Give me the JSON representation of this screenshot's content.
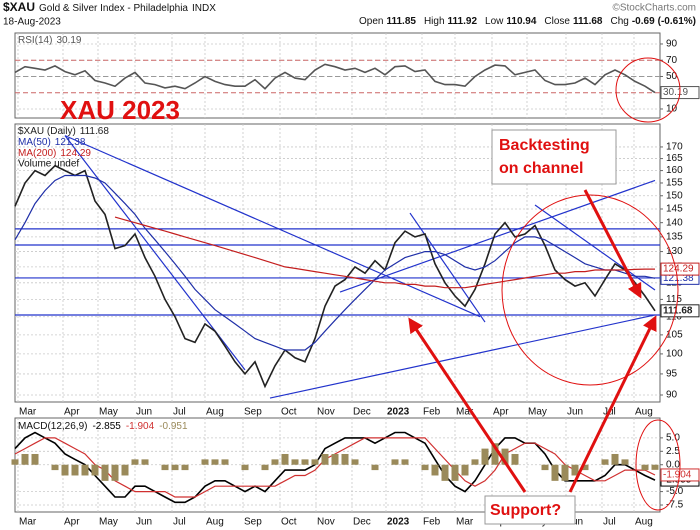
{
  "header": {
    "symbol": "$XAU",
    "name": "Gold & Silver Index - Philadelphia",
    "exchange": "INDX",
    "date": "18-Aug-2023",
    "ohlc": [
      {
        "label": "Open",
        "value": 111.85
      },
      {
        "label": "High",
        "value": 111.92
      },
      {
        "label": "Low",
        "value": 110.94
      },
      {
        "label": "Close",
        "value": 111.68
      }
    ],
    "change_label": "Chg",
    "change": -0.69,
    "change_pct_label": "(-0.61%)",
    "credit": "©StockCharts.com"
  },
  "annotations": {
    "title": "XAU 2023",
    "note": [
      "Backtesting",
      "on channel"
    ],
    "question": "Support?"
  },
  "chart_data": [
    {
      "type": "line",
      "series": [
        {
          "name": "RSI(14)",
          "color": "#555555",
          "values": [
            55,
            62,
            60,
            58,
            63,
            56,
            52,
            57,
            45,
            42,
            38,
            48,
            55,
            42,
            40,
            36,
            38,
            35,
            42,
            50,
            44,
            40,
            38,
            38,
            46,
            35,
            48,
            55,
            48,
            46,
            58,
            65,
            62,
            58,
            60,
            55,
            60,
            52,
            62,
            63,
            56,
            58,
            44,
            40,
            40,
            38,
            50,
            58,
            64,
            63,
            52,
            55,
            58,
            45,
            40,
            40,
            42,
            48,
            40,
            52,
            58,
            52,
            44,
            38,
            30.19
          ]
        }
      ],
      "xlim": [
        0,
        64.5
      ],
      "ylim": [
        -1.1,
        103.5
      ],
      "yticks": [
        10,
        50,
        70,
        90
      ],
      "reference_lines": [
        30,
        50,
        70
      ]
    },
    {
      "type": "line",
      "log_scale": true,
      "series": [
        {
          "name": "$XAU (Daily)",
          "color": "#222222",
          "values": [
            146,
            155,
            160,
            158,
            162,
            160,
            158,
            160,
            148,
            143,
            131,
            132,
            136,
            128,
            122,
            115,
            110,
            104,
            103,
            108,
            106,
            102,
            98,
            95,
            98,
            92,
            97,
            101,
            99,
            98,
            104,
            113,
            119,
            121,
            125,
            123,
            127,
            124,
            133,
            137,
            135,
            136,
            126,
            120,
            116,
            113,
            118,
            126,
            136,
            140,
            135,
            136,
            139,
            132,
            124,
            121,
            119,
            120,
            116,
            121,
            126,
            124,
            120,
            116,
            111.68
          ]
        },
        {
          "name": "MA(50)",
          "color": "#1f2fa8",
          "values": [
            134,
            140,
            147,
            152,
            156,
            158,
            158,
            158,
            157,
            155,
            151,
            147,
            143,
            138,
            134,
            130,
            126,
            122,
            118,
            115,
            112,
            110,
            108,
            106,
            104,
            103,
            102,
            101,
            101,
            101,
            103,
            106,
            109,
            112,
            115,
            118,
            121,
            124,
            126,
            128,
            129,
            130,
            130,
            129,
            127,
            125,
            124,
            125,
            127,
            130,
            133,
            135,
            135,
            134,
            132,
            130,
            128,
            126,
            125,
            124,
            124,
            123,
            122,
            122,
            121.38
          ]
        },
        {
          "name": "MA(200)",
          "color": "#c41e1e",
          "values": [
            null,
            null,
            null,
            null,
            null,
            null,
            null,
            null,
            null,
            null,
            142,
            141,
            140,
            139,
            138,
            137,
            136,
            135,
            134,
            133,
            132,
            131,
            130,
            129,
            128,
            127,
            126,
            125,
            124.5,
            124,
            123.5,
            123,
            122.5,
            122,
            121.5,
            121,
            120.5,
            120,
            120,
            119.5,
            119.5,
            119,
            119,
            118.5,
            118.5,
            118.5,
            119,
            119.5,
            120,
            120.5,
            121,
            121.5,
            122,
            122.5,
            123,
            123,
            123.5,
            123.5,
            124,
            124,
            124,
            124,
            124.2,
            124.3,
            124.29
          ]
        }
      ],
      "volume_label": "Volume undef",
      "xlim": [
        0,
        64.5
      ],
      "ylim": [
        88.4,
        180.3
      ],
      "yticks": [
        90,
        95,
        100,
        105,
        110,
        115,
        120,
        125,
        130,
        135,
        140,
        145,
        150,
        155,
        160,
        165,
        170
      ],
      "xticks": [
        {
          "value": 0.3,
          "label": "Mar"
        },
        {
          "value": 4.8,
          "label": "Apr"
        },
        {
          "value": 8.3,
          "label": "May"
        },
        {
          "value": 12,
          "label": "Jun"
        },
        {
          "value": 15.7,
          "label": "Jul"
        },
        {
          "value": 19,
          "label": "Aug"
        },
        {
          "value": 22.8,
          "label": "Sep"
        },
        {
          "value": 26.5,
          "label": "Oct"
        },
        {
          "value": 30.1,
          "label": "Nov"
        },
        {
          "value": 33.7,
          "label": "Dec"
        },
        {
          "value": 37.1,
          "label": "2023"
        },
        {
          "value": 40.7,
          "label": "Feb"
        },
        {
          "value": 44,
          "label": "Mar"
        },
        {
          "value": 47.7,
          "label": "Apr"
        },
        {
          "value": 51.2,
          "label": "May"
        },
        {
          "value": 55.1,
          "label": "Jun"
        },
        {
          "value": 58.7,
          "label": "Jul"
        },
        {
          "value": 61.9,
          "label": "Aug"
        }
      ],
      "hlines": [
        137.8,
        132.2,
        121.5,
        110.5
      ],
      "trendlines": [
        [
          5,
          175,
          23,
          96
        ],
        [
          5,
          175,
          46.5,
          110
        ],
        [
          25.5,
          89.3,
          64,
          110.5
        ],
        [
          32.5,
          117.2,
          64,
          156
        ],
        [
          39.5,
          143.5,
          47,
          108.5
        ],
        [
          52,
          146.5,
          64,
          117.8
        ]
      ]
    },
    {
      "type": "line",
      "series": [
        {
          "name": "MACD(12,26,9)",
          "color": "#000000",
          "values": [
            3,
            5,
            6,
            5,
            4,
            2,
            1,
            0,
            -2,
            -4,
            -6,
            -6,
            -4,
            -4,
            -5,
            -6,
            -7,
            -7,
            -6,
            -4,
            -3,
            -3,
            -4,
            -5,
            -4,
            -5,
            -3,
            -1,
            -1,
            -1,
            0,
            3,
            4,
            5,
            5,
            5,
            4,
            5,
            6,
            6,
            5,
            4,
            1,
            -2,
            -4,
            -5,
            -3,
            0,
            3,
            5,
            5,
            4,
            4,
            2,
            -1,
            -3,
            -3,
            -3,
            -3,
            -2,
            0,
            0,
            -1,
            -2,
            -2.855
          ]
        },
        {
          "color": "#d03030",
          "values": [
            2,
            3,
            4,
            5,
            5,
            4,
            3,
            2,
            0,
            -1,
            -3,
            -4,
            -5,
            -5,
            -5,
            -5,
            -6,
            -6,
            -6,
            -5,
            -4,
            -4,
            -4,
            -4,
            -4,
            -4,
            -4,
            -3,
            -2,
            -2,
            -1,
            1,
            2,
            3,
            4,
            5,
            5,
            5,
            5,
            5,
            5,
            5,
            3,
            1,
            -1,
            -3,
            -4,
            -3,
            -1,
            2,
            3,
            4,
            4,
            3,
            2,
            0,
            -1,
            -2,
            -3,
            -3,
            -2,
            -1,
            -1,
            -1,
            -1.904
          ]
        },
        {
          "type": "bar",
          "color": "#9a8a5a",
          "values": [
            1,
            2,
            2,
            0,
            -1,
            -2,
            -2,
            -2,
            -2,
            -3,
            -3,
            -2,
            1,
            1,
            0,
            -1,
            -1,
            -1,
            0,
            1,
            1,
            1,
            0,
            -1,
            0,
            -1,
            1,
            2,
            1,
            1,
            1,
            2,
            2,
            2,
            1,
            0,
            -1,
            0,
            1,
            1,
            0,
            -1,
            -2,
            -3,
            -3,
            -2,
            1,
            3,
            4,
            3,
            2,
            0,
            0,
            -1,
            -3,
            -3,
            -2,
            -1,
            0,
            1,
            2,
            1,
            0,
            -1,
            -0.951
          ]
        }
      ],
      "xlim": [
        0,
        64.5
      ],
      "ylim": [
        -8.8,
        8.7
      ],
      "yticks": [
        {
          "value": 5,
          "label": "5.0"
        },
        {
          "value": 2.5,
          "label": "2.5"
        },
        {
          "value": 0,
          "label": "0.0"
        },
        {
          "value": -5,
          "label": "-5.0"
        },
        {
          "value": -7.5,
          "label": "-7.5"
        }
      ],
      "xticks": [
        {
          "value": 0.3,
          "label": "Mar"
        },
        {
          "value": 4.8,
          "label": "Apr"
        },
        {
          "value": 8.3,
          "label": "May"
        },
        {
          "value": 12,
          "label": "Jun"
        },
        {
          "value": 15.7,
          "label": "Jul"
        },
        {
          "value": 19,
          "label": "Aug"
        },
        {
          "value": 22.8,
          "label": "Sep"
        },
        {
          "value": 26.5,
          "label": "Oct"
        },
        {
          "value": 30.1,
          "label": "Nov"
        },
        {
          "value": 33.7,
          "label": "Dec"
        },
        {
          "value": 37.1,
          "label": "2023"
        },
        {
          "value": 40.7,
          "label": "Feb"
        },
        {
          "value": 44,
          "label": "Mar"
        },
        {
          "value": 47.7,
          "label": "Apr"
        },
        {
          "value": 51.2,
          "label": "May"
        },
        {
          "value": 55.1,
          "label": "Jun"
        },
        {
          "value": 58.7,
          "label": "Jul"
        },
        {
          "value": 61.9,
          "label": "Aug"
        }
      ]
    }
  ]
}
